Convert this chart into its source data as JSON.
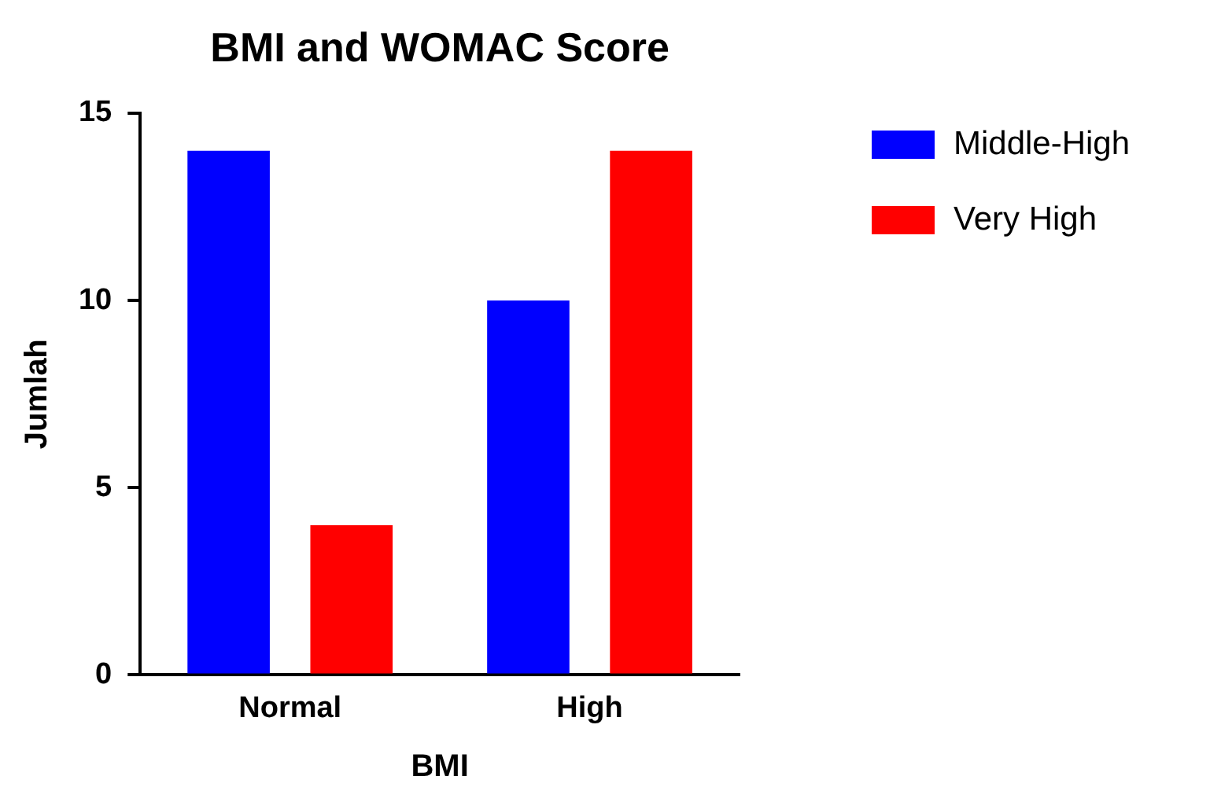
{
  "chart_data": {
    "type": "bar",
    "title": "BMI and WOMAC Score",
    "xlabel": "BMI",
    "ylabel": "Jumlah",
    "categories": [
      "Normal",
      "High"
    ],
    "series": [
      {
        "name": "Middle-High",
        "color": "#0000ff",
        "values": [
          14,
          10
        ]
      },
      {
        "name": "Very High",
        "color": "#ff0000",
        "values": [
          4,
          14
        ]
      }
    ],
    "ylim": [
      0,
      15
    ],
    "yticks": [
      0,
      5,
      10,
      15
    ],
    "grid": false,
    "legend": "top right"
  }
}
